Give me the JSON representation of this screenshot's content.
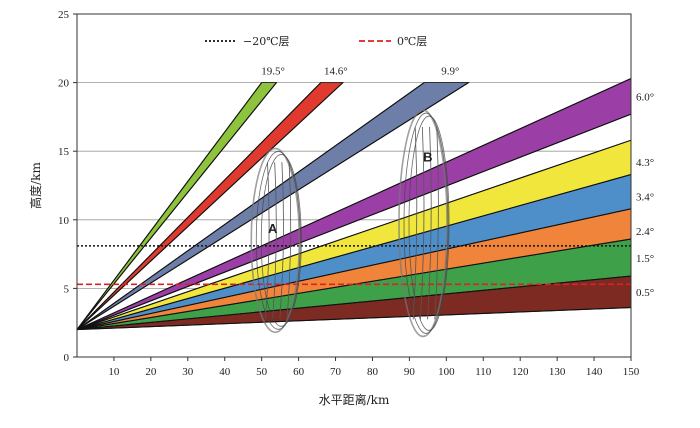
{
  "chart_data": {
    "type": "line",
    "title": "",
    "xlabel": "水平距离/km",
    "ylabel": "高度/km",
    "xlim": [
      0,
      150
    ],
    "ylim": [
      0,
      25
    ],
    "x_ticks": [
      10,
      20,
      30,
      40,
      50,
      60,
      70,
      80,
      90,
      100,
      110,
      120,
      130,
      140,
      150
    ],
    "y_ticks": [
      0,
      5,
      10,
      15,
      20,
      25
    ],
    "grid": "horizontal",
    "radar_origin": {
      "x": 0,
      "y": 2.0
    },
    "beams": [
      {
        "name": "19.5°",
        "label": "19.5°",
        "color": "#8dc33d",
        "bottom": [
          [
            0,
            2
          ],
          [
            50,
            20
          ]
        ],
        "top": [
          [
            0,
            2
          ],
          [
            54,
            20
          ]
        ]
      },
      {
        "name": "14.6°",
        "label": "14.6°",
        "color": "#e03a2f",
        "bottom": [
          [
            0,
            2
          ],
          [
            66,
            20
          ]
        ],
        "top": [
          [
            0,
            2
          ],
          [
            72,
            20
          ]
        ]
      },
      {
        "name": "9.9°",
        "label": "9.9°",
        "color": "#6d7fa8",
        "bottom": [
          [
            0,
            2
          ],
          [
            94,
            20
          ]
        ],
        "top": [
          [
            0,
            2
          ],
          [
            106,
            20
          ]
        ]
      },
      {
        "name": "6.0°",
        "label": "6.0°",
        "color": "#9b3fa6",
        "bottom": [
          [
            0,
            2
          ],
          [
            150,
            17.7
          ]
        ],
        "top": [
          [
            0,
            2
          ],
          [
            150,
            20.3
          ]
        ]
      },
      {
        "name": "4.3°",
        "label": "4.3°",
        "color": "#f0e63c",
        "bottom": [
          [
            0,
            2
          ],
          [
            150,
            12.6
          ]
        ],
        "top": [
          [
            0,
            2
          ],
          [
            150,
            15.8
          ]
        ]
      },
      {
        "name": "3.4°",
        "label": "3.4°",
        "color": "#4f8fc9",
        "bottom": [
          [
            0,
            2
          ],
          [
            150,
            10.1
          ]
        ],
        "top": [
          [
            0,
            2
          ],
          [
            150,
            13.3
          ]
        ]
      },
      {
        "name": "2.4°",
        "label": "2.4°",
        "color": "#f0843a",
        "bottom": [
          [
            0,
            2
          ],
          [
            150,
            7.6
          ]
        ],
        "top": [
          [
            0,
            2
          ],
          [
            150,
            10.8
          ]
        ]
      },
      {
        "name": "1.5°",
        "label": "1.5°",
        "color": "#3ea14a",
        "bottom": [
          [
            0,
            2
          ],
          [
            150,
            5.8
          ]
        ],
        "top": [
          [
            0,
            2
          ],
          [
            150,
            8.6
          ]
        ]
      },
      {
        "name": "0.5°",
        "label": "0.5°",
        "color": "#7d2a22",
        "bottom": [
          [
            0,
            2
          ],
          [
            150,
            3.6
          ]
        ],
        "top": [
          [
            0,
            2
          ],
          [
            150,
            5.9
          ]
        ]
      }
    ],
    "reference_lines": [
      {
        "name": "-20C",
        "label": "−20℃层",
        "y": 8.1,
        "color": "#111111",
        "style": "dotted"
      },
      {
        "name": "0C",
        "label": "0℃层",
        "y": 5.3,
        "color": "#e02020",
        "style": "dashed"
      }
    ],
    "clouds": [
      {
        "label": "A",
        "x": 53,
        "y": 9.4,
        "x_range": [
          48,
          61
        ],
        "y_range": [
          1.8,
          15.2
        ]
      },
      {
        "label": "B",
        "x": 95,
        "y": 14.6,
        "x_range": [
          88,
          101
        ],
        "y_range": [
          1.5,
          18.0
        ]
      }
    ],
    "legend_position": "top"
  }
}
